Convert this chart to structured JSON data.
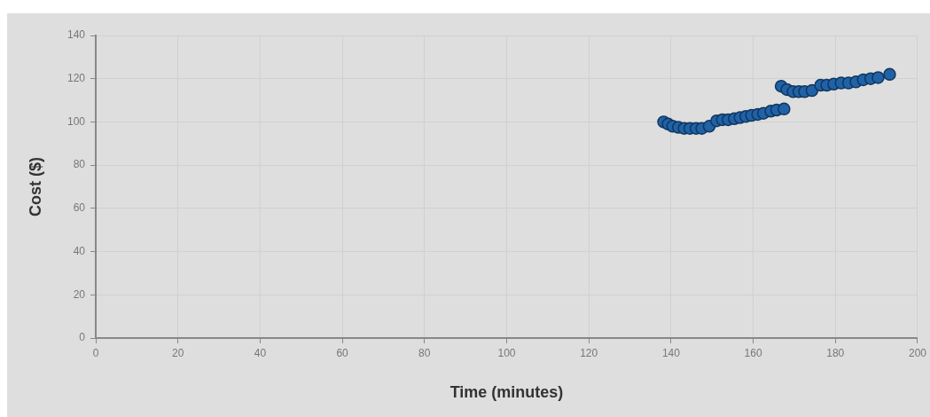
{
  "chart_data": {
    "type": "scatter",
    "xlabel": "Time (minutes)",
    "ylabel": "Cost ($)",
    "x": [
      138.2,
      139.3,
      140.4,
      141.8,
      143.2,
      144.6,
      146.1,
      147.5,
      149.3,
      151.1,
      152.5,
      153.9,
      155.4,
      156.8,
      158.2,
      159.6,
      161.1,
      162.5,
      164.3,
      165.7,
      167.5,
      166.8,
      168.2,
      169.7,
      171.1,
      172.5,
      174.3,
      176.4,
      177.9,
      179.6,
      181.4,
      183.2,
      185,
      186.8,
      188.6,
      190.4,
      193.2
    ],
    "values": [
      100,
      99,
      98,
      97.5,
      97,
      97,
      97,
      97,
      98,
      100.5,
      101,
      101,
      101.5,
      102,
      102.5,
      103,
      103.5,
      104,
      105,
      105.5,
      106,
      116.5,
      115,
      114,
      114,
      114,
      114.5,
      117,
      117,
      117.5,
      118,
      118,
      118.5,
      119.5,
      120,
      120.5,
      122
    ],
    "color": "#1f62a8",
    "marker": "circle",
    "xlim": [
      0,
      200
    ],
    "xticks": [
      0,
      20,
      40,
      60,
      80,
      100,
      120,
      140,
      160,
      180,
      200
    ],
    "ylim": [
      0,
      140
    ],
    "yticks": [
      0,
      20,
      40,
      60,
      80,
      100,
      120,
      140
    ],
    "grid": true
  }
}
